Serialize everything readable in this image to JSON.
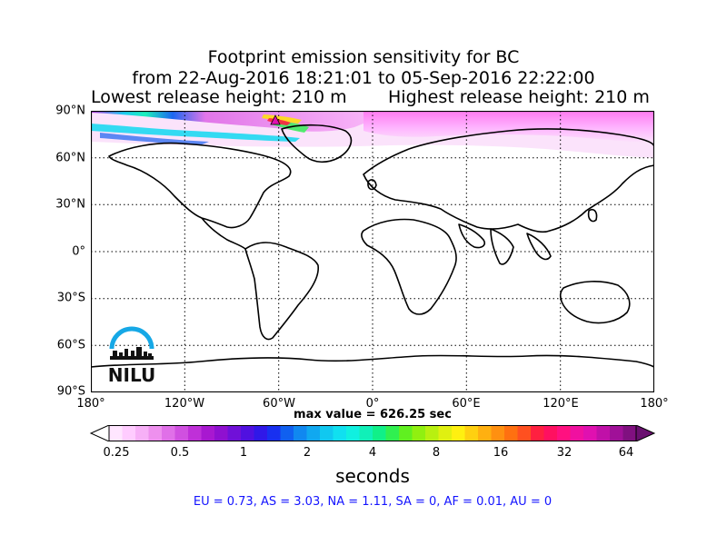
{
  "title": {
    "line1": "Footprint emission sensitivity for BC",
    "line2": "from 22-Aug-2016 18:21:01 to 05-Sep-2016 22:22:00"
  },
  "release": {
    "lowest": "Lowest release height: 210 m",
    "highest": "Highest release height: 210 m"
  },
  "map": {
    "lat_labels": [
      "90°N",
      "60°N",
      "30°N",
      "0°",
      "30°S",
      "60°S",
      "90°S"
    ],
    "lon_labels": [
      "180°",
      "120°W",
      "60°W",
      "0°",
      "60°E",
      "120°E",
      "180°"
    ],
    "gridlines": "dotted",
    "logo_text": "NILU",
    "release_site_marker": "triangle-magenta"
  },
  "max_value": "max value = 626.25 sec",
  "colorbar": {
    "ticks": [
      "0.25",
      "0.5",
      "1",
      "2",
      "4",
      "8",
      "16",
      "32",
      "64"
    ],
    "unit": "seconds",
    "colors": [
      "#ffe6ff",
      "#ffccff",
      "#f7b0f7",
      "#ee90ee",
      "#e070e8",
      "#d050e0",
      "#bf30d8",
      "#a818d0",
      "#8f10d0",
      "#7010d8",
      "#5010e0",
      "#3018e8",
      "#1830f0",
      "#1060f0",
      "#1088f0",
      "#10a8f0",
      "#10c8f0",
      "#10e0f0",
      "#10f0e0",
      "#10f0b8",
      "#10f088",
      "#30f050",
      "#60f020",
      "#90f010",
      "#b8f010",
      "#e0f010",
      "#fff010",
      "#ffd010",
      "#ffb010",
      "#ff9010",
      "#ff7010",
      "#ff5020",
      "#ff2040",
      "#ff1060",
      "#ff1080",
      "#f010a0",
      "#e010b0",
      "#c010a8",
      "#a01098",
      "#801080"
    ],
    "under_color": "#ffffff",
    "over_color": "#6a1070"
  },
  "summary": "EU = 0.73,  AS = 3.03,  NA = 1.11,  SA = 0,  AF = 0.01,  AU = 0"
}
